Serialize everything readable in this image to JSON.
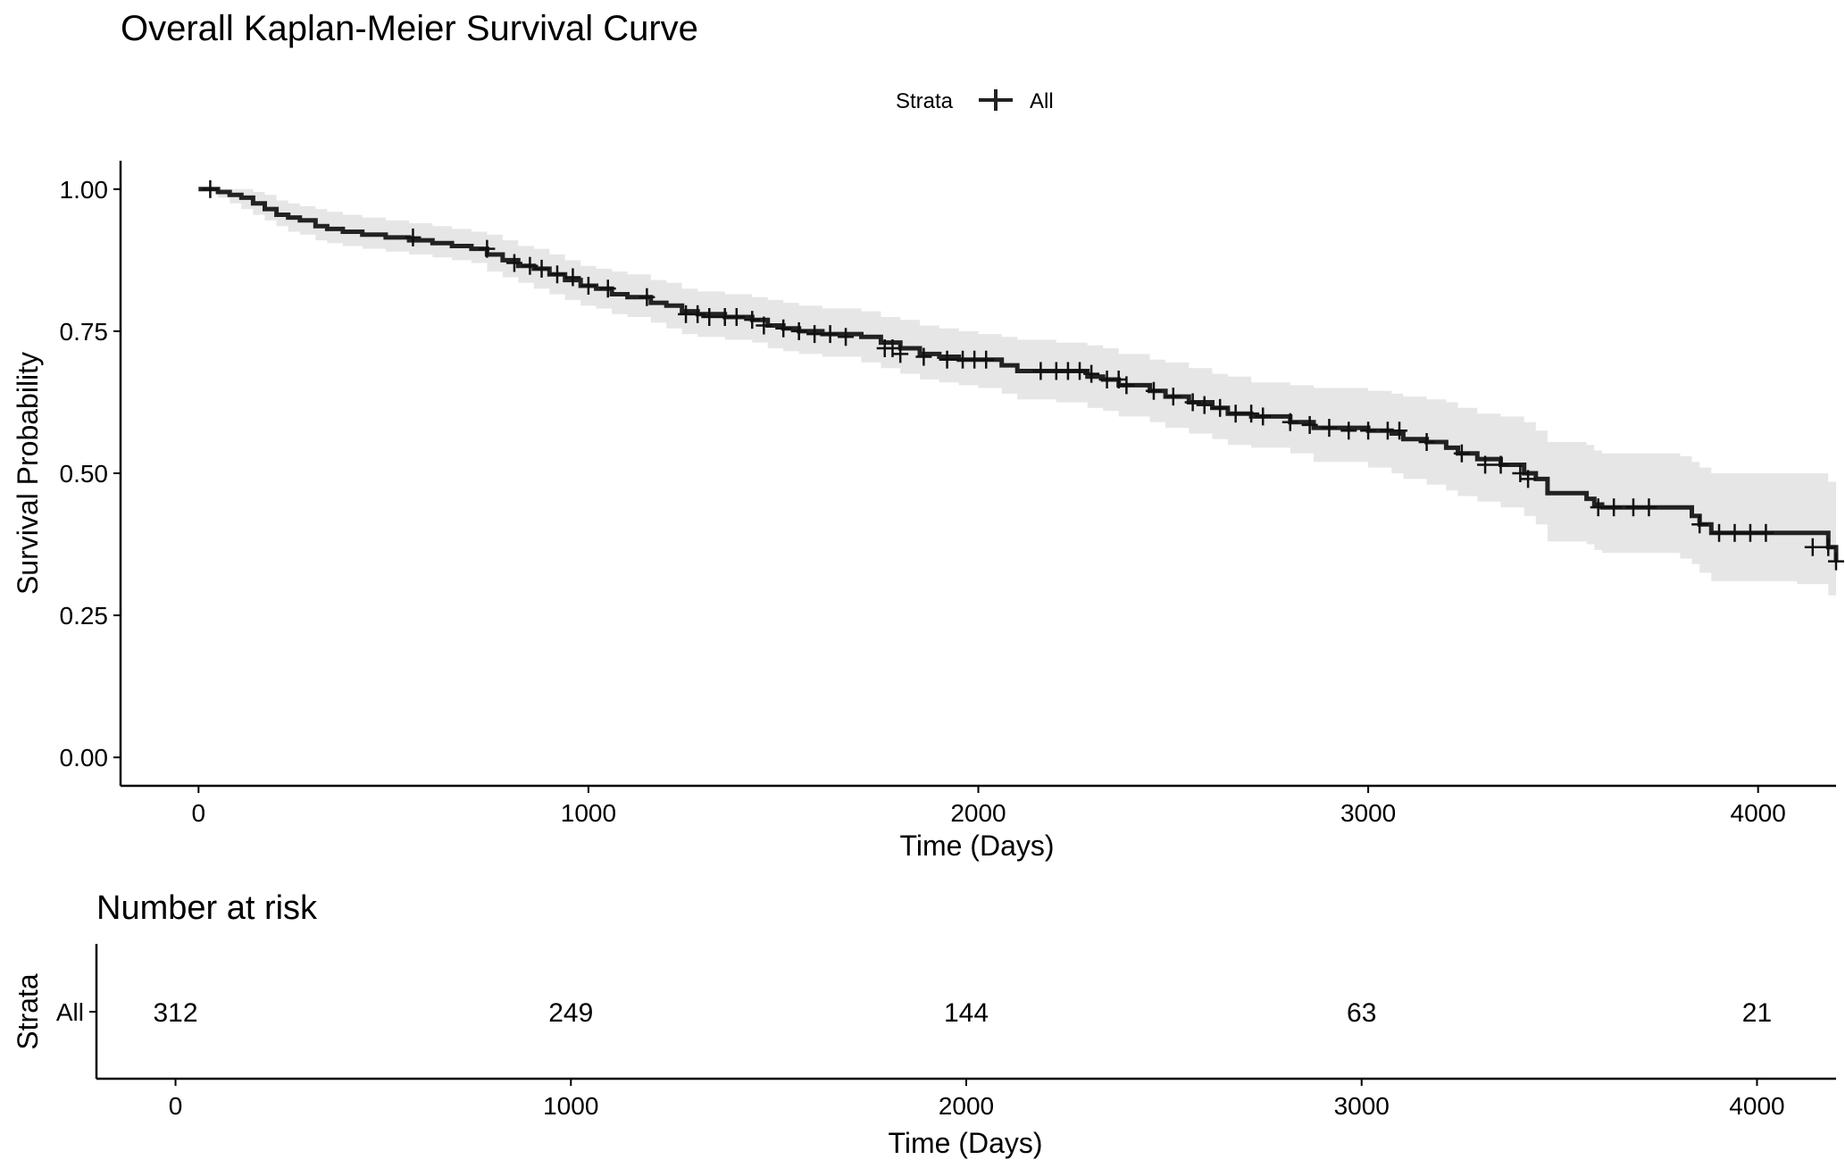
{
  "chart_data": [
    {
      "type": "line",
      "subtype": "kaplan-meier",
      "title": "Overall Kaplan-Meier Survival Curve",
      "xlabel": "Time (Days)",
      "ylabel": "Survival Probability",
      "xlim": [
        -200,
        4200
      ],
      "ylim": [
        -0.05,
        1.05
      ],
      "x_ticks": [
        0,
        1000,
        2000,
        3000,
        4000
      ],
      "x_tick_labels": [
        "0",
        "1000",
        "2000",
        "3000",
        "4000"
      ],
      "y_ticks": [
        0.0,
        0.25,
        0.5,
        0.75,
        1.0
      ],
      "y_tick_labels": [
        "0.00",
        "0.25",
        "0.50",
        "0.75",
        "1.00"
      ],
      "grid": false,
      "legend": {
        "position": "top",
        "title": "Strata",
        "entries": [
          "All"
        ]
      },
      "series": [
        {
          "name": "All",
          "color": "#222222",
          "ci_color": "#e6e6e6",
          "x": [
            0,
            50,
            80,
            110,
            140,
            170,
            200,
            230,
            260,
            300,
            330,
            370,
            420,
            480,
            540,
            600,
            650,
            700,
            740,
            780,
            820,
            860,
            900,
            940,
            980,
            1020,
            1060,
            1100,
            1160,
            1200,
            1240,
            1280,
            1350,
            1420,
            1460,
            1500,
            1540,
            1600,
            1700,
            1750,
            1800,
            1850,
            1900,
            1950,
            2000,
            2060,
            2100,
            2200,
            2280,
            2320,
            2360,
            2440,
            2480,
            2540,
            2600,
            2640,
            2700,
            2800,
            2860,
            3000,
            3060,
            3090,
            3150,
            3200,
            3230,
            3280,
            3340,
            3400,
            3430,
            3460,
            3560,
            3580,
            3600,
            3800,
            3830,
            3850,
            3880,
            4100,
            4180,
            4200
          ],
          "y": [
            1.0,
            0.995,
            0.99,
            0.985,
            0.975,
            0.965,
            0.955,
            0.95,
            0.945,
            0.935,
            0.93,
            0.925,
            0.92,
            0.915,
            0.91,
            0.905,
            0.9,
            0.895,
            0.885,
            0.875,
            0.865,
            0.86,
            0.85,
            0.84,
            0.83,
            0.825,
            0.815,
            0.81,
            0.8,
            0.795,
            0.785,
            0.78,
            0.775,
            0.77,
            0.76,
            0.755,
            0.75,
            0.745,
            0.74,
            0.73,
            0.72,
            0.71,
            0.705,
            0.7,
            0.7,
            0.69,
            0.68,
            0.68,
            0.67,
            0.665,
            0.655,
            0.645,
            0.635,
            0.625,
            0.615,
            0.605,
            0.6,
            0.59,
            0.58,
            0.575,
            0.57,
            0.56,
            0.555,
            0.545,
            0.535,
            0.525,
            0.515,
            0.5,
            0.49,
            0.465,
            0.455,
            0.445,
            0.44,
            0.44,
            0.425,
            0.41,
            0.395,
            0.395,
            0.37,
            0.345
          ],
          "ci_upper": [
            1.0,
            1.0,
            1.0,
            1.0,
            0.995,
            0.99,
            0.98,
            0.975,
            0.97,
            0.965,
            0.96,
            0.955,
            0.95,
            0.945,
            0.94,
            0.935,
            0.93,
            0.925,
            0.92,
            0.91,
            0.9,
            0.895,
            0.885,
            0.875,
            0.865,
            0.86,
            0.855,
            0.85,
            0.84,
            0.835,
            0.825,
            0.82,
            0.815,
            0.81,
            0.805,
            0.8,
            0.795,
            0.79,
            0.785,
            0.775,
            0.77,
            0.76,
            0.755,
            0.75,
            0.745,
            0.74,
            0.735,
            0.73,
            0.725,
            0.72,
            0.71,
            0.7,
            0.695,
            0.685,
            0.675,
            0.67,
            0.66,
            0.655,
            0.65,
            0.645,
            0.64,
            0.635,
            0.63,
            0.625,
            0.615,
            0.605,
            0.6,
            0.59,
            0.575,
            0.555,
            0.55,
            0.54,
            0.535,
            0.53,
            0.52,
            0.51,
            0.5,
            0.5,
            0.485,
            0.47
          ],
          "ci_lower": [
            1.0,
            0.985,
            0.975,
            0.965,
            0.955,
            0.945,
            0.935,
            0.925,
            0.92,
            0.91,
            0.905,
            0.9,
            0.895,
            0.89,
            0.885,
            0.88,
            0.875,
            0.87,
            0.855,
            0.845,
            0.835,
            0.825,
            0.815,
            0.805,
            0.795,
            0.79,
            0.78,
            0.775,
            0.765,
            0.755,
            0.745,
            0.74,
            0.735,
            0.73,
            0.72,
            0.715,
            0.71,
            0.705,
            0.695,
            0.685,
            0.675,
            0.665,
            0.66,
            0.655,
            0.65,
            0.64,
            0.63,
            0.625,
            0.615,
            0.61,
            0.6,
            0.59,
            0.58,
            0.57,
            0.56,
            0.55,
            0.545,
            0.535,
            0.52,
            0.51,
            0.5,
            0.49,
            0.48,
            0.47,
            0.46,
            0.45,
            0.44,
            0.425,
            0.41,
            0.38,
            0.375,
            0.365,
            0.36,
            0.35,
            0.34,
            0.325,
            0.31,
            0.305,
            0.285,
            0.25
          ],
          "censor_x": [
            30,
            550,
            740,
            810,
            850,
            880,
            920,
            960,
            1000,
            1050,
            1150,
            1250,
            1280,
            1310,
            1350,
            1380,
            1420,
            1450,
            1500,
            1540,
            1580,
            1620,
            1660,
            1760,
            1780,
            1800,
            1860,
            1920,
            1960,
            1990,
            2020,
            2160,
            2200,
            2230,
            2260,
            2290,
            2330,
            2360,
            2380,
            2450,
            2500,
            2550,
            2580,
            2620,
            2660,
            2700,
            2730,
            2800,
            2850,
            2900,
            2950,
            3000,
            3050,
            3080,
            3150,
            3240,
            3300,
            3340,
            3390,
            3410,
            3590,
            3630,
            3680,
            3720,
            3850,
            3900,
            3940,
            3980,
            4020,
            4140,
            4180,
            4200
          ],
          "censor_y": [
            1.0,
            0.915,
            0.895,
            0.87,
            0.865,
            0.86,
            0.85,
            0.845,
            0.83,
            0.825,
            0.81,
            0.78,
            0.78,
            0.775,
            0.775,
            0.775,
            0.77,
            0.76,
            0.755,
            0.75,
            0.745,
            0.745,
            0.74,
            0.72,
            0.72,
            0.71,
            0.705,
            0.7,
            0.7,
            0.7,
            0.7,
            0.68,
            0.68,
            0.68,
            0.68,
            0.675,
            0.665,
            0.665,
            0.655,
            0.645,
            0.635,
            0.625,
            0.62,
            0.615,
            0.605,
            0.605,
            0.6,
            0.59,
            0.585,
            0.58,
            0.575,
            0.575,
            0.575,
            0.575,
            0.555,
            0.535,
            0.515,
            0.515,
            0.5,
            0.49,
            0.44,
            0.44,
            0.44,
            0.44,
            0.41,
            0.395,
            0.395,
            0.395,
            0.395,
            0.37,
            0.37,
            0.345
          ]
        }
      ]
    },
    {
      "type": "table",
      "title": "Number at risk",
      "xlabel": "Time (Days)",
      "ylabel": "Strata",
      "xlim": [
        -200,
        4200
      ],
      "x_ticks": [
        0,
        1000,
        2000,
        3000,
        4000
      ],
      "x_tick_labels": [
        "0",
        "1000",
        "2000",
        "3000",
        "4000"
      ],
      "rows": [
        {
          "strata": "All",
          "times": [
            0,
            1000,
            2000,
            3000,
            4000
          ],
          "values": [
            "312",
            "249",
            "144",
            "63",
            "21"
          ]
        }
      ]
    }
  ]
}
